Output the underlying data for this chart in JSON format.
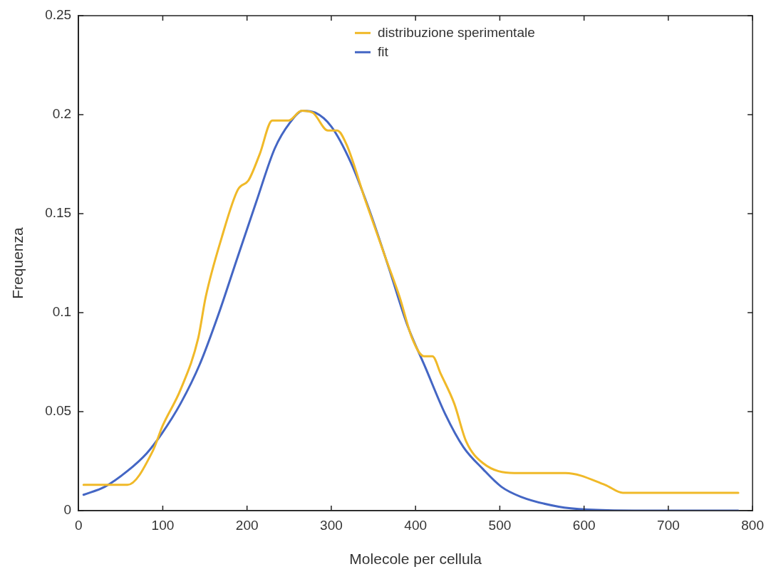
{
  "chart_data": {
    "type": "line",
    "xlabel": "Molecole per cellula",
    "ylabel": "Frequenza",
    "xlim": [
      0,
      800
    ],
    "xticks": [
      0,
      100,
      200,
      300,
      400,
      500,
      600,
      700,
      800
    ],
    "ylim": [
      0,
      0.25
    ],
    "yticks": [
      0,
      0.05,
      0.1,
      0.15,
      0.2,
      0.25
    ],
    "grid": false,
    "legend": "top right",
    "marker": "none",
    "line_style": "solid",
    "series": [
      {
        "name": "distribuzione sperimentale",
        "color": "#f0b928",
        "x": [
          6,
          58,
          88,
          100,
          121,
          142,
          151,
          170,
          189,
          202,
          215,
          230,
          249,
          265,
          278,
          296,
          307,
          318,
          341,
          365,
          381,
          396,
          410,
          420,
          430,
          446,
          460,
          480,
          517,
          578,
          625,
          646,
          744,
          783
        ],
        "values": [
          0.013,
          0.013,
          0.03,
          0.043,
          0.061,
          0.087,
          0.108,
          0.138,
          0.162,
          0.167,
          0.18,
          0.197,
          0.197,
          0.202,
          0.201,
          0.192,
          0.192,
          0.185,
          0.156,
          0.127,
          0.108,
          0.087,
          0.078,
          0.078,
          0.069,
          0.054,
          0.035,
          0.024,
          0.019,
          0.019,
          0.013,
          0.009,
          0.009,
          0.009
        ]
      },
      {
        "name": "fit",
        "color": "#4466c4",
        "x": [
          6,
          31,
          58,
          81,
          99,
          121,
          144,
          166,
          188,
          211,
          233,
          251,
          266,
          281,
          300,
          323,
          345,
          368,
          390,
          412,
          435,
          457,
          480,
          502,
          525,
          570,
          605,
          659,
          783
        ],
        "values": [
          0.008,
          0.012,
          0.02,
          0.029,
          0.039,
          0.054,
          0.074,
          0.099,
          0.127,
          0.156,
          0.183,
          0.196,
          0.202,
          0.201,
          0.194,
          0.176,
          0.152,
          0.123,
          0.094,
          0.072,
          0.049,
          0.032,
          0.021,
          0.012,
          0.007,
          0.002,
          0.0005,
          0,
          0
        ]
      }
    ]
  }
}
